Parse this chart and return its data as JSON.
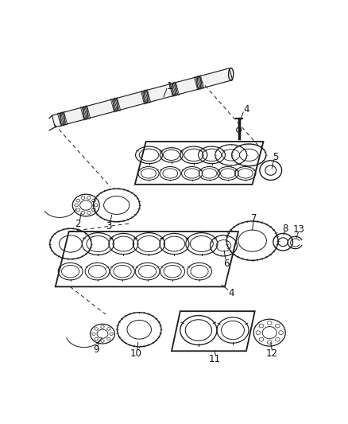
{
  "bg_color": "#ffffff",
  "line_color": "#1a1a1a",
  "text_color": "#111111",
  "lw": 0.9,
  "fig_w": 4.38,
  "fig_h": 5.33,
  "dpi": 100
}
